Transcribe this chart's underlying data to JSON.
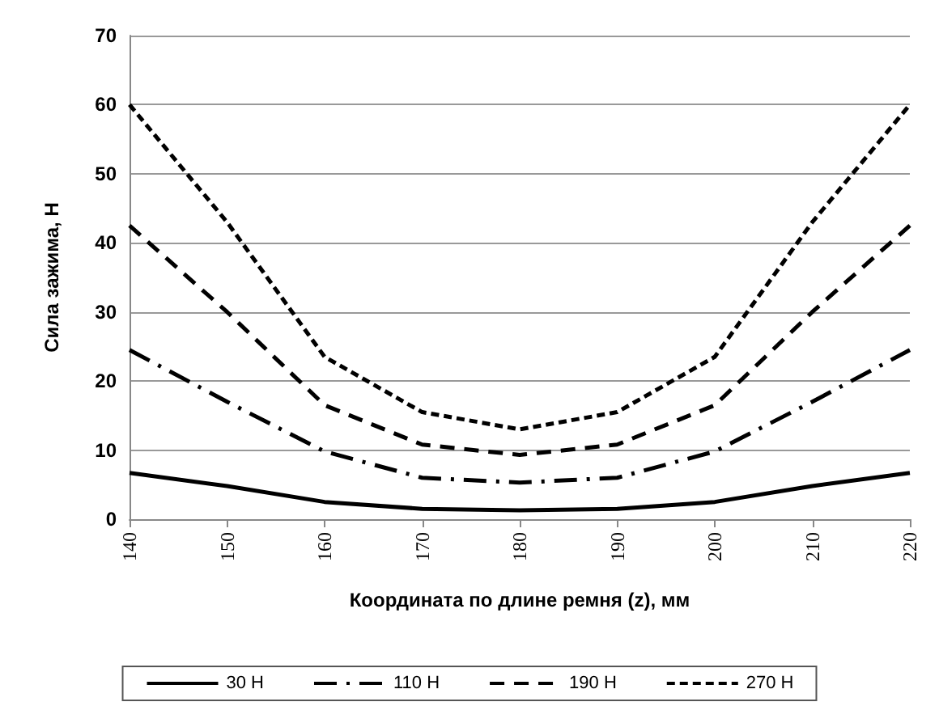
{
  "chart_data": {
    "type": "line",
    "xlabel": "Координата по длине ремня (z), мм",
    "ylabel": "Сила зажима, Н",
    "x": [
      140,
      150,
      160,
      170,
      180,
      190,
      200,
      210,
      220
    ],
    "xlim": [
      140,
      220
    ],
    "xticks": [
      140,
      150,
      160,
      170,
      180,
      190,
      200,
      210,
      220
    ],
    "ylim": [
      0,
      70
    ],
    "yticks": [
      0,
      10,
      20,
      30,
      40,
      50,
      60,
      70
    ],
    "grid": "y",
    "legend": "bottom",
    "marker": "none",
    "series": [
      {
        "name": "30 Н",
        "color": "#000000",
        "line_style": "solid",
        "values": [
          6.7,
          4.8,
          2.5,
          1.5,
          1.3,
          1.5,
          2.5,
          4.8,
          6.7
        ]
      },
      {
        "name": "110 Н",
        "color": "#000000",
        "line_style": "dashdot",
        "values": [
          24.5,
          17,
          9.8,
          6,
          5.3,
          6,
          9.8,
          17,
          24.5
        ]
      },
      {
        "name": "190 Н",
        "color": "#000000",
        "line_style": "dashed",
        "values": [
          42.5,
          30,
          16.5,
          10.8,
          9.3,
          10.8,
          16.5,
          30,
          42.5
        ]
      },
      {
        "name": "270 Н",
        "color": "#000000",
        "line_style": "dotted",
        "values": [
          60,
          43,
          23.5,
          15.5,
          13,
          15.5,
          23.5,
          43,
          60
        ]
      }
    ]
  }
}
